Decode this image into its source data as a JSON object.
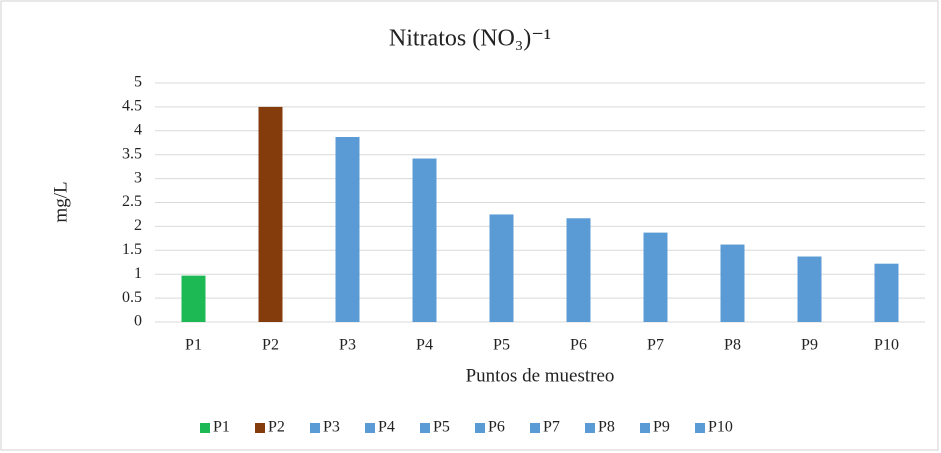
{
  "chart_data": {
    "type": "bar",
    "title": "Nitratos (NO₃)⁻¹",
    "x_label": "Puntos de muestreo",
    "y_label": "mg/L",
    "categories": [
      "P1",
      "P2",
      "P3",
      "P4",
      "P5",
      "P6",
      "P7",
      "P8",
      "P9",
      "P10"
    ],
    "values": [
      0.97,
      4.5,
      3.87,
      3.42,
      2.25,
      2.17,
      1.87,
      1.62,
      1.37,
      1.22
    ],
    "colors": [
      "#1db954",
      "#843c0c",
      "#5b9bd5",
      "#5b9bd5",
      "#5b9bd5",
      "#5b9bd5",
      "#5b9bd5",
      "#5b9bd5",
      "#5b9bd5",
      "#5b9bd5"
    ],
    "ylim": [
      0,
      5
    ],
    "yticks": [
      0,
      0.5,
      1,
      1.5,
      2,
      2.5,
      3,
      3.5,
      4,
      4.5,
      5
    ],
    "grid": true,
    "legend": "bottom"
  }
}
